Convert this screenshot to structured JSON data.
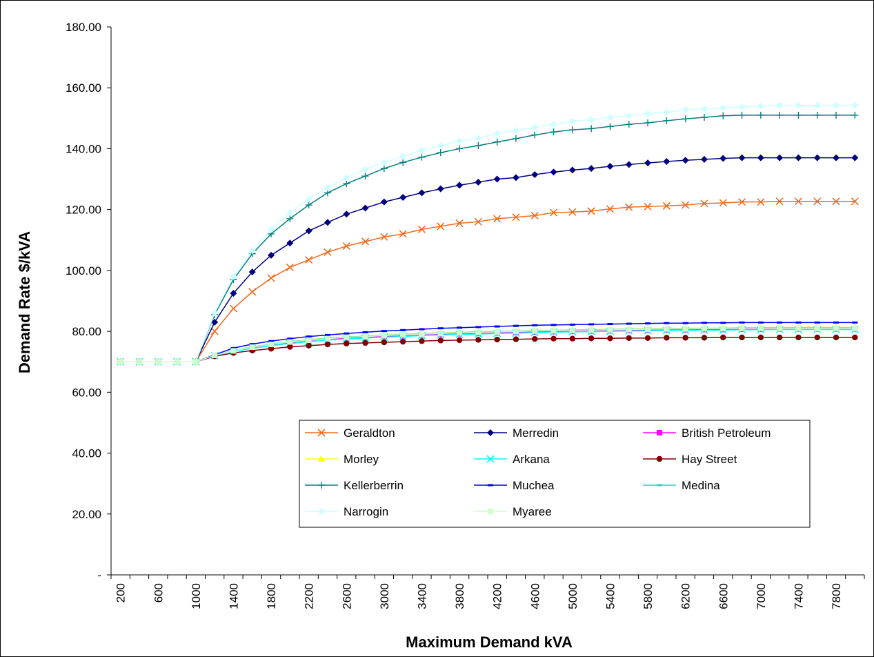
{
  "chart_data": {
    "type": "line",
    "title": "",
    "xlabel": "Maximum Demand kVA",
    "ylabel": "Demand Rate $/kVA",
    "ylim": [
      0,
      180
    ],
    "y_ticks": [
      "-",
      "20.00",
      "40.00",
      "60.00",
      "80.00",
      "100.00",
      "120.00",
      "140.00",
      "160.00",
      "180.00"
    ],
    "x_tick_labels": [
      "200",
      "600",
      "1000",
      "1400",
      "1800",
      "2200",
      "2600",
      "3000",
      "3400",
      "3800",
      "4200",
      "4600",
      "5000",
      "5400",
      "5800",
      "6200",
      "6600",
      "7000",
      "7400",
      "7800"
    ],
    "x": [
      200,
      400,
      600,
      800,
      1000,
      1200,
      1400,
      1600,
      1800,
      2000,
      2200,
      2400,
      2600,
      2800,
      3000,
      3200,
      3400,
      3600,
      3800,
      4000,
      4200,
      4400,
      4600,
      4800,
      5000,
      5200,
      5400,
      5600,
      5800,
      6000,
      6200,
      6400,
      6600,
      6800,
      7000,
      7200,
      7400,
      7600,
      7800,
      8000
    ],
    "legend_position": "center-bottom",
    "grid": false,
    "series": [
      {
        "name": "Geraldton",
        "color": "#F26B1D",
        "marker": "x",
        "values": [
          70,
          70,
          70,
          70,
          70,
          80,
          87.5,
          93,
          97.5,
          101,
          103.5,
          106,
          108,
          109.5,
          111,
          112,
          113.5,
          114.5,
          115.5,
          116,
          117,
          117.5,
          118,
          119,
          119.2,
          119.5,
          120.2,
          120.8,
          121,
          121.2,
          121.5,
          122,
          122.2,
          122.5,
          122.5,
          122.7,
          122.7,
          122.7,
          122.7,
          122.7
        ]
      },
      {
        "name": "Merredin",
        "color": "#000080",
        "marker": "diamond",
        "values": [
          70,
          70,
          70,
          70,
          70,
          83,
          92.5,
          99.5,
          105,
          109,
          113,
          115.8,
          118.5,
          120.5,
          122.5,
          124,
          125.5,
          126.8,
          128,
          129,
          130,
          130.5,
          131.5,
          132.3,
          133,
          133.5,
          134.2,
          134.8,
          135.3,
          135.8,
          136.2,
          136.5,
          136.8,
          137,
          137,
          137,
          137,
          137,
          137,
          137
        ]
      },
      {
        "name": "British Petroleum",
        "color": "#FF00FF",
        "marker": "square",
        "values": [
          70,
          70,
          70,
          70,
          70,
          72,
          73.5,
          74.5,
          75.5,
          76.3,
          77,
          77.5,
          77.8,
          78,
          78.3,
          78.5,
          78.8,
          79,
          79.2,
          79.3,
          79.5,
          79.6,
          79.8,
          79.9,
          80,
          80.1,
          80.2,
          80.3,
          80.4,
          80.5,
          80.5,
          80.6,
          80.6,
          80.7,
          80.7,
          80.8,
          80.8,
          80.8,
          80.8,
          80.8
        ]
      },
      {
        "name": "Morley",
        "color": "#FFFF00",
        "marker": "triangle",
        "values": [
          70,
          70,
          70,
          70,
          70,
          72,
          73.6,
          74.8,
          75.8,
          76.6,
          77.3,
          77.8,
          78.2,
          78.5,
          78.8,
          79,
          79.3,
          79.5,
          79.7,
          79.9,
          80,
          80.1,
          80.3,
          80.4,
          80.5,
          80.6,
          80.7,
          80.8,
          80.9,
          81,
          81,
          81.1,
          81.1,
          81.2,
          81.2,
          81.3,
          81.3,
          81.3,
          81.3,
          81.3
        ]
      },
      {
        "name": "Arkana",
        "color": "#00FFFF",
        "marker": "x",
        "values": [
          70,
          70,
          70,
          70,
          70,
          72,
          73.4,
          74.4,
          75.3,
          76,
          76.6,
          77.1,
          77.5,
          77.8,
          78.1,
          78.3,
          78.6,
          78.8,
          79,
          79.1,
          79.3,
          79.4,
          79.6,
          79.7,
          79.8,
          79.9,
          80,
          80.1,
          80.2,
          80.3,
          80.3,
          80.4,
          80.4,
          80.5,
          80.5,
          80.6,
          80.6,
          80.6,
          80.6,
          80.6
        ]
      },
      {
        "name": "Hay Street",
        "color": "#800000",
        "marker": "circle",
        "values": [
          70,
          70,
          70,
          70,
          70,
          71.8,
          72.9,
          73.7,
          74.3,
          74.9,
          75.3,
          75.7,
          76,
          76.2,
          76.4,
          76.6,
          76.8,
          77,
          77.1,
          77.2,
          77.3,
          77.4,
          77.5,
          77.6,
          77.6,
          77.7,
          77.7,
          77.8,
          77.8,
          77.9,
          77.9,
          77.9,
          78,
          78,
          78,
          78,
          78,
          78,
          78,
          78
        ]
      },
      {
        "name": "Kellerberrin",
        "color": "#008080",
        "marker": "plus",
        "values": [
          70,
          70,
          70,
          70,
          70,
          85.5,
          97,
          105.5,
          112,
          117,
          121.5,
          125.5,
          128.5,
          131,
          133.5,
          135.5,
          137.2,
          138.7,
          140,
          141,
          142.2,
          143.3,
          144.5,
          145.5,
          146.2,
          146.6,
          147.3,
          148,
          148.5,
          149.2,
          149.8,
          150.3,
          150.8,
          151,
          151,
          151,
          151,
          151,
          151,
          151
        ]
      },
      {
        "name": "Muchea",
        "color": "#0000FF",
        "marker": "dash",
        "values": [
          70,
          70,
          70,
          70,
          70,
          72.3,
          74.5,
          75.8,
          76.8,
          77.6,
          78.3,
          78.8,
          79.3,
          79.7,
          80.1,
          80.4,
          80.7,
          81,
          81.2,
          81.4,
          81.6,
          81.8,
          82,
          82.1,
          82.2,
          82.3,
          82.4,
          82.5,
          82.6,
          82.7,
          82.7,
          82.8,
          82.8,
          82.9,
          82.9,
          82.9,
          82.9,
          82.9,
          82.9,
          82.9
        ]
      },
      {
        "name": "Medina",
        "color": "#33CCCC",
        "marker": "dash",
        "values": [
          70,
          70,
          70,
          70,
          70,
          72.1,
          73.7,
          74.9,
          75.8,
          76.6,
          77.2,
          77.7,
          78.1,
          78.4,
          78.7,
          79,
          79.2,
          79.4,
          79.6,
          79.8,
          79.9,
          80.1,
          80.2,
          80.3,
          80.4,
          80.5,
          80.6,
          80.7,
          80.8,
          80.9,
          80.9,
          81,
          81,
          81.1,
          81.1,
          81.1,
          81.1,
          81.1,
          81.1,
          81.1
        ]
      },
      {
        "name": "Narrogin",
        "color": "#CCFFFF",
        "marker": "diamond",
        "values": [
          70,
          70,
          70,
          70,
          70,
          86,
          98,
          106.5,
          113.5,
          119,
          123.5,
          127.2,
          130.5,
          133.2,
          135.5,
          137.5,
          139.5,
          141,
          142.5,
          143.5,
          145,
          146,
          147,
          148,
          149,
          149.6,
          150.3,
          150.8,
          151.5,
          152,
          152.7,
          153,
          153.4,
          153.7,
          154,
          154.2,
          154.2,
          154.2,
          154.2,
          154.2
        ]
      },
      {
        "name": "Myaree",
        "color": "#CCFFCC",
        "marker": "square",
        "values": [
          70,
          70,
          70,
          70,
          70,
          72.1,
          73.6,
          74.8,
          75.7,
          76.5,
          77.1,
          77.6,
          78,
          78.3,
          78.6,
          78.9,
          79.1,
          79.3,
          79.5,
          79.7,
          79.8,
          80,
          80.1,
          80.2,
          80.3,
          80.4,
          80.5,
          80.6,
          80.7,
          80.8,
          80.8,
          80.9,
          80.9,
          81,
          81,
          81,
          81,
          81,
          81,
          81
        ]
      }
    ]
  }
}
